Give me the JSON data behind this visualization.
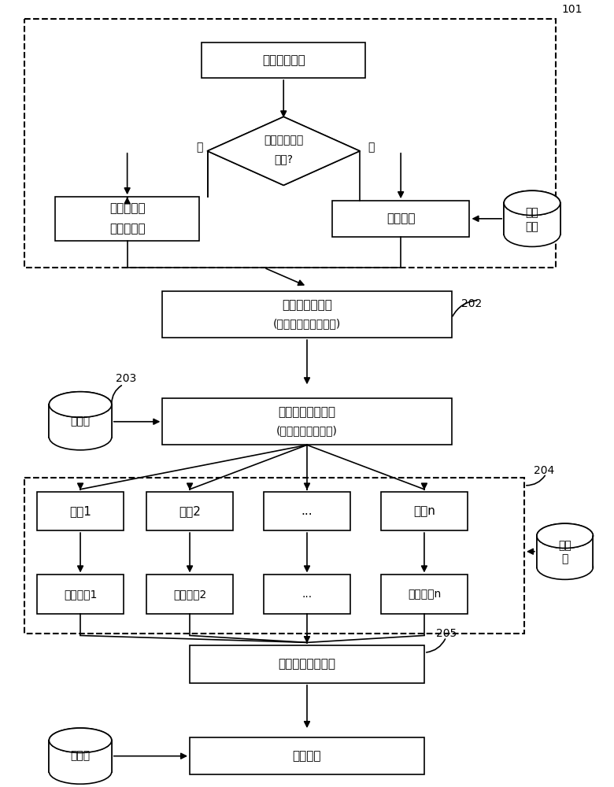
{
  "bg_color": "#ffffff",
  "lc": "#000000",
  "label_101": "101",
  "label_202": "202",
  "label_203": "203",
  "label_204": "204",
  "label_205": "205",
  "txt_queding": "确定评价目标",
  "txt_shifou1": "是否存在先验",
  "txt_shifou2": "模板?",
  "txt_fou": "否",
  "txt_shi": "是",
  "txt_zidingyizhibiao": "自定义指标",
  "txt_zidingyiyuzhi": "自定义阈値",
  "txt_zairu": "载入模板",
  "txt_xiayan1": "先验",
  "txt_xiayan2": "知识",
  "txt_preproc1": "指标预处理单元",
  "txt_preproc2": "(无量纲化及标度设置)",
  "txt_zhibiaoku": "指标库",
  "txt_recomm1": "指标智能推荐单元",
  "txt_recomm2": "(手动或者自动推荐)",
  "txt_alg1": "算法1",
  "txt_alg2": "算法2",
  "txt_alg3": "...",
  "txt_algn": "算法n",
  "txt_res1": "评价结果1",
  "txt_res2": "评价结果2",
  "txt_res3": "...",
  "txt_resn": "评价结果n",
  "txt_yuzhi1": "阈値",
  "txt_yuzhi2": "库",
  "txt_fusion": "评价结果融合单元",
  "txt_guize": "规则库",
  "txt_output": "输出单元",
  "fs": 11,
  "fs_sm": 10
}
